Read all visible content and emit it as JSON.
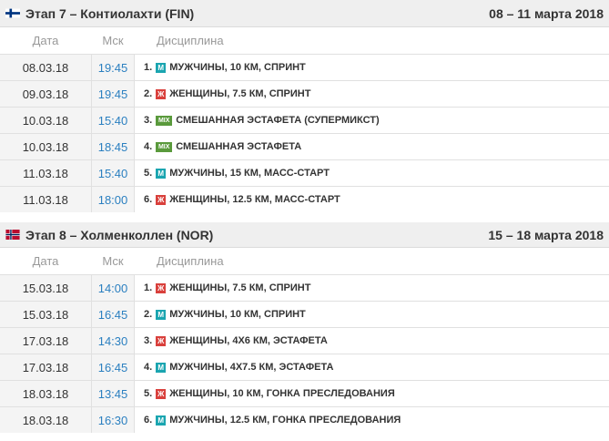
{
  "columns": {
    "date": "Дата",
    "time": "Мск",
    "discipline": "Дисциплина"
  },
  "stages": [
    {
      "title": "Этап 7 – Контиолахти (FIN)",
      "dates": "08 – 11 марта 2018",
      "flag": "finland-flag",
      "races": [
        {
          "date": "08.03.18",
          "time": "19:45",
          "num": "1.",
          "badge": "М",
          "badge_type": "m",
          "name": "МУЖЧИНЫ, 10 КМ, СПРИНТ"
        },
        {
          "date": "09.03.18",
          "time": "19:45",
          "num": "2.",
          "badge": "Ж",
          "badge_type": "w",
          "name": "ЖЕНЩИНЫ, 7.5 КМ, СПРИНТ"
        },
        {
          "date": "10.03.18",
          "time": "15:40",
          "num": "3.",
          "badge": "MIX",
          "badge_type": "mix",
          "name": "СМЕШАННАЯ ЭСТАФЕТА (СУПЕРМИКСТ)"
        },
        {
          "date": "10.03.18",
          "time": "18:45",
          "num": "4.",
          "badge": "MIX",
          "badge_type": "mix",
          "name": "СМЕШАННАЯ ЭСТАФЕТА"
        },
        {
          "date": "11.03.18",
          "time": "15:40",
          "num": "5.",
          "badge": "М",
          "badge_type": "m",
          "name": "МУЖЧИНЫ, 15 КМ, МАСС-СТАРТ"
        },
        {
          "date": "11.03.18",
          "time": "18:00",
          "num": "6.",
          "badge": "Ж",
          "badge_type": "w",
          "name": "ЖЕНЩИНЫ, 12.5 КМ, МАСС-СТАРТ"
        }
      ]
    },
    {
      "title": "Этап 8 – Холменколлен (NOR)",
      "dates": "15 – 18 марта 2018",
      "flag": "norway-flag",
      "races": [
        {
          "date": "15.03.18",
          "time": "14:00",
          "num": "1.",
          "badge": "Ж",
          "badge_type": "w",
          "name": "ЖЕНЩИНЫ, 7.5 КМ, СПРИНТ"
        },
        {
          "date": "15.03.18",
          "time": "16:45",
          "num": "2.",
          "badge": "М",
          "badge_type": "m",
          "name": "МУЖЧИНЫ, 10 КМ, СПРИНТ"
        },
        {
          "date": "17.03.18",
          "time": "14:30",
          "num": "3.",
          "badge": "Ж",
          "badge_type": "w",
          "name": "ЖЕНЩИНЫ, 4Х6 КМ, ЭСТАФЕТА"
        },
        {
          "date": "17.03.18",
          "time": "16:45",
          "num": "4.",
          "badge": "М",
          "badge_type": "m",
          "name": "МУЖЧИНЫ, 4Х7.5 КМ, ЭСТАФЕТА"
        },
        {
          "date": "18.03.18",
          "time": "13:45",
          "num": "5.",
          "badge": "Ж",
          "badge_type": "w",
          "name": "ЖЕНЩИНЫ, 10 КМ, ГОНКА ПРЕСЛЕДОВАНИЯ"
        },
        {
          "date": "18.03.18",
          "time": "16:30",
          "num": "6.",
          "badge": "М",
          "badge_type": "m",
          "name": "МУЖЧИНЫ, 12.5 КМ, ГОНКА ПРЕСЛЕДОВАНИЯ"
        }
      ]
    }
  ],
  "colors": {
    "time_link": "#2a7fc0",
    "men": "#1aa5b0",
    "women": "#d9403c",
    "mixed": "#5a9a3c"
  }
}
